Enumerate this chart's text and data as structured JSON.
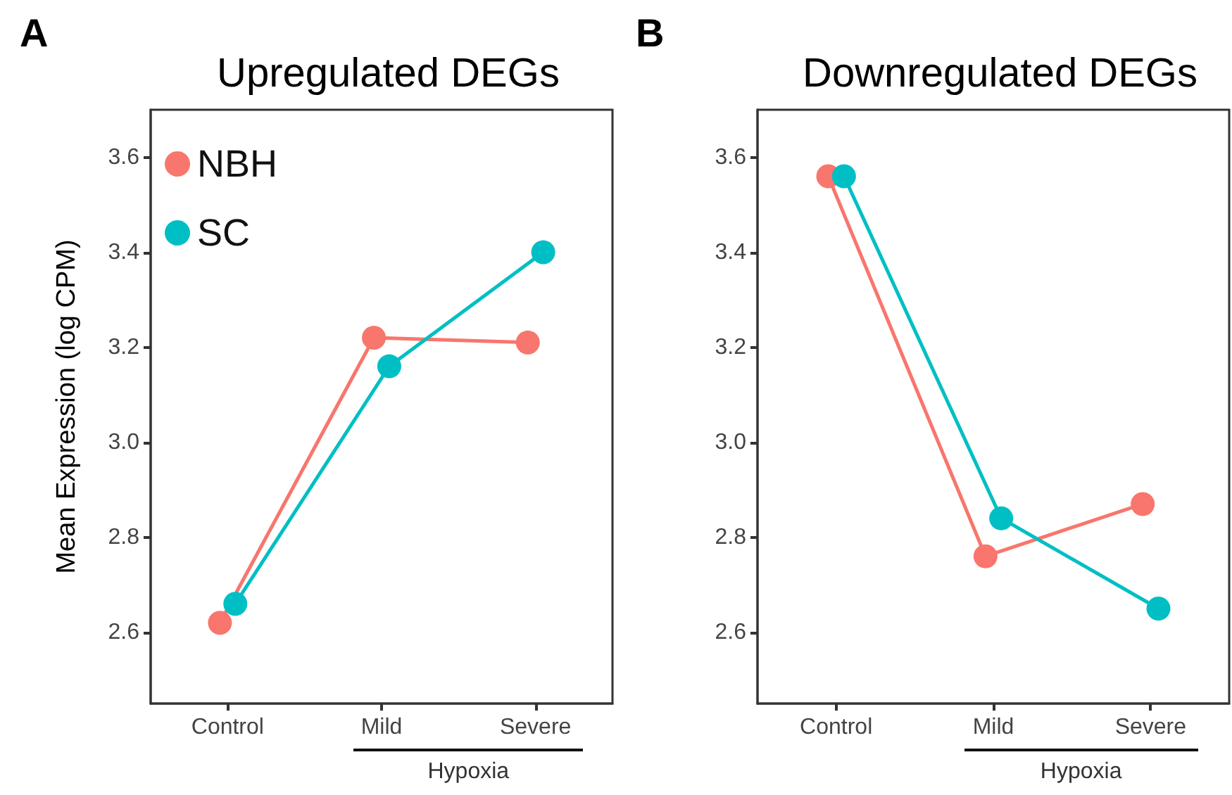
{
  "chart_data": [
    {
      "type": "line",
      "title": "Upregulated DEGs",
      "ylabel": "Mean Expression (log CPM)",
      "annotations": [
        "A",
        "Hypoxia"
      ],
      "categories": [
        "Control",
        "Mild",
        "Severe"
      ],
      "series": [
        {
          "name": "NBH",
          "color": "#f8766d",
          "values": [
            2.62,
            3.22,
            3.21
          ]
        },
        {
          "name": "SC",
          "color": "#00bfc4",
          "values": [
            2.66,
            3.16,
            3.4
          ]
        }
      ],
      "ylim": [
        2.45,
        3.7
      ],
      "yticks": [
        2.6,
        2.8,
        {
          "value": 3,
          "label": "3.0"
        },
        3.2,
        3.4,
        3.6
      ],
      "grid": false,
      "legend": "top left",
      "marker": "circle",
      "line_style": "solid"
    },
    {
      "type": "line",
      "title": "Downregulated DEGs",
      "annotations": [
        "B",
        "Hypoxia"
      ],
      "categories": [
        "Control",
        "Mild",
        "Severe"
      ],
      "series": [
        {
          "color": "#f8766d",
          "values": [
            3.56,
            2.76,
            2.87
          ]
        },
        {
          "color": "#00bfc4",
          "values": [
            3.56,
            2.84,
            2.65
          ]
        }
      ],
      "ylim": [
        2.45,
        3.7
      ],
      "yticks": [
        2.6,
        2.8,
        {
          "value": 3,
          "label": "3.0"
        },
        3.2,
        3.4,
        3.6
      ],
      "grid": false,
      "legend": false,
      "marker": "circle",
      "line_style": "solid"
    }
  ]
}
